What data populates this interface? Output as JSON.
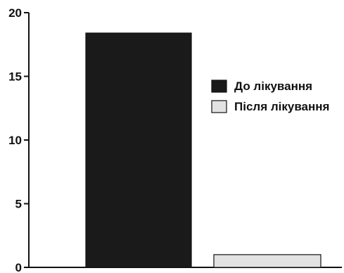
{
  "chart_data": {
    "type": "bar",
    "title": "",
    "xlabel": "",
    "ylabel": "",
    "ylim": [
      0,
      20
    ],
    "yticks": [
      0,
      5,
      10,
      15,
      20
    ],
    "grid": false,
    "legend_position": "right",
    "series": [
      {
        "name": "До лікування",
        "values": [
          18.4
        ],
        "color": "#1a1a1a"
      },
      {
        "name": "Після лікування",
        "values": [
          1.0
        ],
        "color": "#e2e2e2"
      }
    ]
  }
}
